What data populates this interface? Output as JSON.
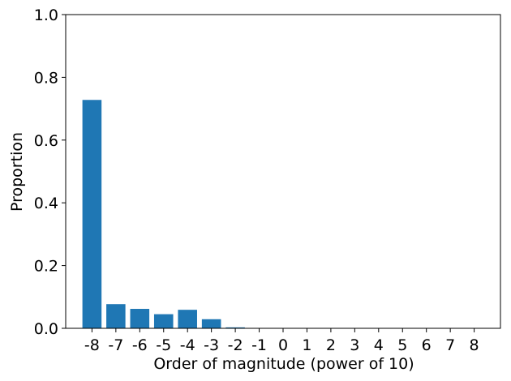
{
  "chart_data": {
    "type": "bar",
    "categories": [
      "-8",
      "-7",
      "-6",
      "-5",
      "-4",
      "-3",
      "-2",
      "-1",
      "0",
      "1",
      "2",
      "3",
      "4",
      "5",
      "6",
      "7",
      "8"
    ],
    "values": [
      0.728,
      0.077,
      0.062,
      0.045,
      0.059,
      0.029,
      0.003,
      0,
      0,
      0,
      0,
      0,
      0,
      0,
      0,
      0,
      0
    ],
    "title": "",
    "xlabel": "Order of magnitude (power of 10)",
    "ylabel": "Proportion",
    "ylim": [
      0,
      1.0
    ],
    "yticks": [
      "0.0",
      "0.2",
      "0.4",
      "0.6",
      "0.8",
      "1.0"
    ],
    "bar_color": "#1f77b4",
    "grid": false
  }
}
